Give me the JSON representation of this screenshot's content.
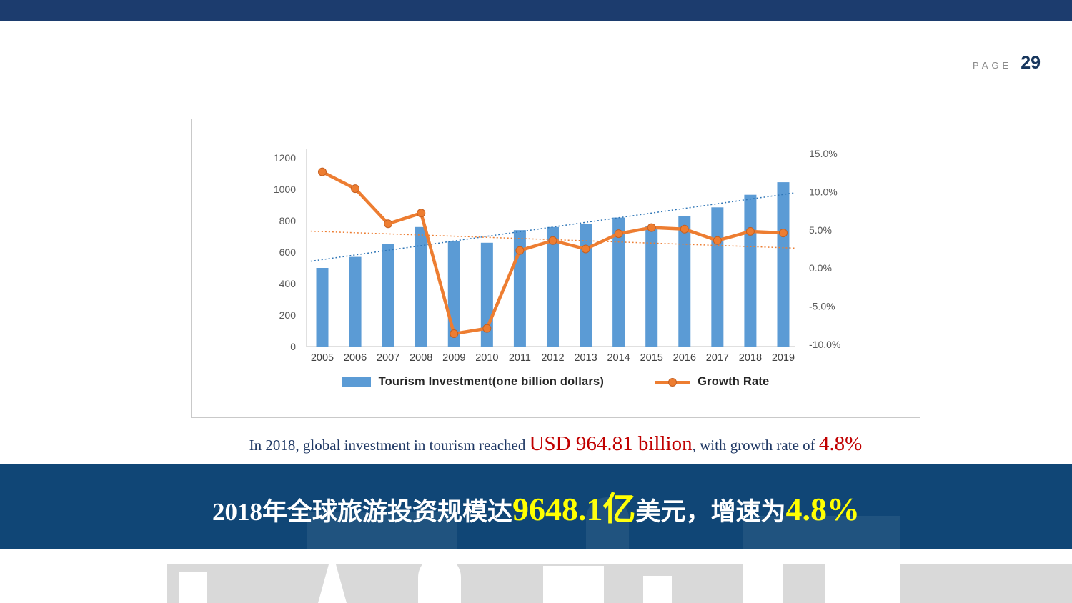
{
  "page": {
    "label": "PAGE",
    "number": "29"
  },
  "chart_data": {
    "type": "bar",
    "categories": [
      "2005",
      "2006",
      "2007",
      "2008",
      "2009",
      "2010",
      "2011",
      "2012",
      "2013",
      "2014",
      "2015",
      "2016",
      "2017",
      "2018",
      "2019"
    ],
    "series": [
      {
        "name": "Tourism Investment(one billion dollars)",
        "type": "bar",
        "axis": "left",
        "color": "#5b9bd5",
        "values": [
          500,
          570,
          650,
          760,
          670,
          660,
          740,
          760,
          780,
          820,
          765,
          830,
          885,
          965,
          1045
        ]
      },
      {
        "name": "Growth Rate",
        "type": "line",
        "axis": "right",
        "color": "#ed7d31",
        "values": [
          12.6,
          10.4,
          5.8,
          7.2,
          -8.6,
          -7.9,
          2.3,
          3.6,
          2.5,
          4.5,
          5.3,
          5.1,
          3.6,
          4.8,
          4.6
        ]
      }
    ],
    "left_axis": {
      "min": 0,
      "max": 1200,
      "step": 200,
      "ticks": [
        "0",
        "200",
        "400",
        "600",
        "800",
        "1000",
        "1200"
      ]
    },
    "right_axis": {
      "min": -10,
      "max": 15,
      "step": 5,
      "ticks": [
        "15.0%",
        "10.0%",
        "5.0%",
        "0.0%",
        "-5.0%",
        "-10.0%"
      ]
    },
    "trendlines": [
      "bar-series-linear-trend",
      "line-series-linear-trend"
    ],
    "legend_position": "bottom",
    "grid": "off",
    "title": ""
  },
  "caption": {
    "part1": "In 2018, global investment in tourism reached ",
    "highlight1": "USD 964.81 billion",
    "part2": ", with growth rate of ",
    "highlight2": " 4.8%"
  },
  "banner": {
    "part1": "2018年全球旅游投资规模达",
    "highlight1": "9648.1亿",
    "part2": "美元，增速为",
    "highlight2": "4.8%"
  },
  "colors": {
    "top_bar": "#1c3c6e",
    "banner_bg": "#104676",
    "bar": "#5b9bd5",
    "line": "#ed7d31",
    "trend_bar": "#2e75b6",
    "trend_line": "#ed7d31",
    "caption_text": "#1f3864",
    "caption_highlight": "#c00000",
    "banner_text": "#ffffff",
    "banner_highlight": "#ffff00"
  }
}
